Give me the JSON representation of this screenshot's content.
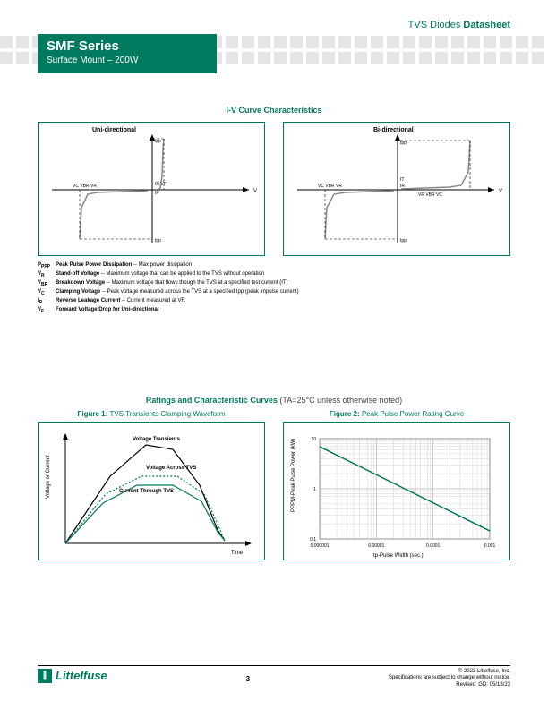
{
  "header": {
    "category_prefix": "TVS Diodes ",
    "category_bold": "Datasheet",
    "series": "SMF Series",
    "subtitle": "Surface Mount – 200W"
  },
  "iv": {
    "section_title": "I-V Curve Characteristics",
    "uni_label": "Uni-directional",
    "bi_label": "Bi-directional",
    "axis_v": "V",
    "labels": {
      "ipp_top": "Ipp",
      "it": "IT",
      "ir": "IR",
      "vc_vbr_vr": "VC  VBR VR",
      "vr_vbr_vc": "VR VBR  VC",
      "ir_vf": "IR  VF",
      "if": "IF",
      "ipp_bot": "Ipp"
    },
    "defs": [
      {
        "sym": "P",
        "sub": "PPP",
        "name": "Peak Pulse Power Dissipation",
        "desc": " -- Max power dissipation"
      },
      {
        "sym": "V",
        "sub": "R",
        "name": "Stand-off Voltage",
        "desc": " -- Maximum voltage that can be applied to the TVS without operation"
      },
      {
        "sym": "V",
        "sub": "BR",
        "name": "Breakdown Voltage",
        "desc": " --  Maximum voltage that flows though the TVS at a specified test current (IT)"
      },
      {
        "sym": "V",
        "sub": "C",
        "name": "Clamping Voltage",
        "desc": " -- Peak voltage measured across the TVS at a specified Ipp (peak impulse current)"
      },
      {
        "sym": "I",
        "sub": "R",
        "name": "Reverse Leakage Current",
        "desc": " -- Current measured at VR"
      },
      {
        "sym": "V",
        "sub": "F",
        "name": "Forward Voltage Drop for Uni-directional",
        "desc": ""
      }
    ]
  },
  "ratings": {
    "title": "Ratings and Characteristic Curves",
    "note": " (TA=25°C unless otherwise noted)",
    "fig1_prefix": "Figure 1: ",
    "fig1_title": "TVS Transients Clamping Waveform",
    "fig2_prefix": "Figure 2: ",
    "fig2_title": "Peak Pulse Power Rating Curve",
    "fig1": {
      "ylabel": "Voltage or Current",
      "xlabel": "Time",
      "l1": "Voltage Transients",
      "l2": "Voltage Across TVS",
      "l3": "Current Through TVS",
      "axis_color": "#000000",
      "curve_colors": [
        "#000000",
        "#007a5e",
        "#007a5e"
      ]
    },
    "fig2": {
      "ylabel": "PPPM-Peak Pulse Power (kW)",
      "xlabel": "tp-Pulse Width (sec.)",
      "xticks": [
        "0.000001",
        "0.00001",
        "0.0001",
        "0.001"
      ],
      "yticks": [
        "0.1",
        "1",
        "10"
      ],
      "line_color": "#007a5e",
      "grid_color": "#b5b5b5",
      "line_points": [
        [
          0,
          0.92
        ],
        [
          1,
          0.08
        ]
      ]
    }
  },
  "footer": {
    "logo": "Littelfuse",
    "page": "3",
    "copyright": "© 2023 Littelfuse, Inc.",
    "note1": "Specifications are subject to change without notice.",
    "note2": "Revised: GD: 05/18/23"
  },
  "colors": {
    "brand": "#007a5e",
    "grey": "#e5e5e5"
  }
}
